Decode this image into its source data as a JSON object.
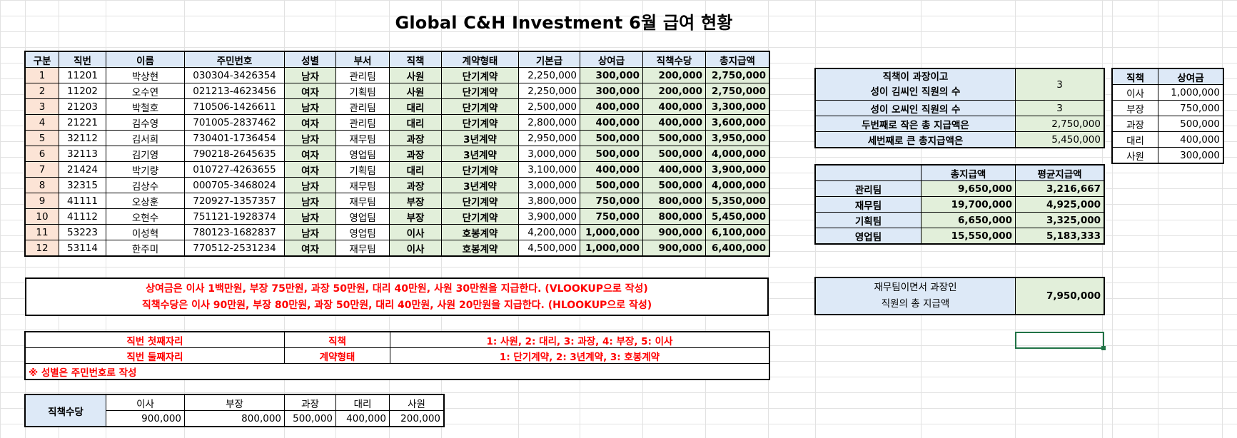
{
  "title": "Global C&H Investment 6월 급여 현황",
  "main_table": {
    "headers": [
      "구분",
      "직번",
      "이름",
      "주민번호",
      "성별",
      "부서",
      "직책",
      "계약형태",
      "기본급",
      "상여급",
      "직책수당",
      "총지급액"
    ],
    "rows": [
      [
        "1",
        "11201",
        "박상현",
        "030304-3426354",
        "남자",
        "관리팀",
        "사원",
        "단기계약",
        "2,250,000",
        "300,000",
        "200,000",
        "2,750,000"
      ],
      [
        "2",
        "11202",
        "오수연",
        "021213-4623456",
        "여자",
        "기획팀",
        "사원",
        "단기계약",
        "2,250,000",
        "300,000",
        "200,000",
        "2,750,000"
      ],
      [
        "3",
        "21203",
        "박철호",
        "710506-1426611",
        "남자",
        "관리팀",
        "대리",
        "단기계약",
        "2,500,000",
        "400,000",
        "400,000",
        "3,300,000"
      ],
      [
        "4",
        "21221",
        "김수영",
        "701005-2837462",
        "여자",
        "관리팀",
        "대리",
        "단기계약",
        "2,800,000",
        "400,000",
        "400,000",
        "3,600,000"
      ],
      [
        "5",
        "32112",
        "김서희",
        "730401-1736454",
        "남자",
        "재무팀",
        "과장",
        "3년계약",
        "2,950,000",
        "500,000",
        "500,000",
        "3,950,000"
      ],
      [
        "6",
        "32113",
        "김기영",
        "790218-2645635",
        "여자",
        "영업팀",
        "과장",
        "3년계약",
        "3,000,000",
        "500,000",
        "500,000",
        "4,000,000"
      ],
      [
        "7",
        "21424",
        "박기량",
        "010727-4263655",
        "여자",
        "기획팀",
        "대리",
        "단기계약",
        "3,100,000",
        "400,000",
        "400,000",
        "3,900,000"
      ],
      [
        "8",
        "32315",
        "김상수",
        "000705-3468024",
        "남자",
        "재무팀",
        "과장",
        "3년계약",
        "3,000,000",
        "500,000",
        "500,000",
        "4,000,000"
      ],
      [
        "9",
        "41111",
        "오상훈",
        "720927-1357357",
        "남자",
        "재무팀",
        "부장",
        "단기계약",
        "3,800,000",
        "750,000",
        "800,000",
        "5,350,000"
      ],
      [
        "10",
        "41112",
        "오현수",
        "751121-1928374",
        "남자",
        "영업팀",
        "부장",
        "단기계약",
        "3,900,000",
        "750,000",
        "800,000",
        "5,450,000"
      ],
      [
        "11",
        "53223",
        "이성혁",
        "780123-1682837",
        "남자",
        "영업팀",
        "이사",
        "호봉계약",
        "4,200,000",
        "1,000,000",
        "900,000",
        "6,100,000"
      ],
      [
        "12",
        "53114",
        "한주미",
        "770512-2531234",
        "여자",
        "재무팀",
        "이사",
        "호봉계약",
        "4,500,000",
        "1,000,000",
        "900,000",
        "6,400,000"
      ]
    ]
  },
  "stats": [
    {
      "label_line1": "직책이 과장이고",
      "label_line2": "성이 김씨인 직원의 수",
      "value": "3"
    },
    {
      "label": "성이 오씨인 직원의 수",
      "value": "3"
    },
    {
      "label": "두번째로 작은 총 지급액은",
      "value": "2,750,000"
    },
    {
      "label": "세번째로 큰 총지급액은",
      "value": "5,450,000"
    }
  ],
  "dept_table": {
    "headers": [
      "",
      "총지급액",
      "평균지급액"
    ],
    "rows": [
      [
        "관리팀",
        "9,650,000",
        "3,216,667"
      ],
      [
        "재무팀",
        "19,700,000",
        "4,925,000"
      ],
      [
        "기획팀",
        "6,650,000",
        "3,325,000"
      ],
      [
        "영업팀",
        "15,550,000",
        "5,183,333"
      ]
    ]
  },
  "finance_box": {
    "line1": "재무팀이면서 과장인",
    "line2": "직원의 총 지급액",
    "value": "7,950,000"
  },
  "bonus_lookup": {
    "headers": [
      "직책",
      "상여금"
    ],
    "rows": [
      [
        "이사",
        "1,000,000"
      ],
      [
        "부장",
        "750,000"
      ],
      [
        "과장",
        "500,000"
      ],
      [
        "대리",
        "400,000"
      ],
      [
        "사원",
        "300,000"
      ]
    ]
  },
  "notes": {
    "line1": "상여금은 이사 1백만원, 부장 75만원, 과장 50만원, 대리 40만원, 사원 30만원을 지급한다. (VLOOKUP으로 작성)",
    "line2": "직책수당은 이사 90만원, 부장 80만원, 과장 50만원, 대리 40만원, 사원 20만원을 지급한다. (HLOOKUP으로 작성)"
  },
  "code_table": {
    "row1": {
      "label": "직번 첫째자리",
      "field": "직책",
      "desc": "1: 사원, 2: 대리, 3: 과장, 4: 부장, 5: 이사"
    },
    "row2": {
      "label": "직번 둘째자리",
      "field": "계약형태",
      "desc": "1: 단기계약, 2: 3년계약, 3: 호봉계약"
    },
    "note": "※ 성별은 주민번호로 작성"
  },
  "allowance_table": {
    "label": "직책수당",
    "headers": [
      "이사",
      "부장",
      "과장",
      "대리",
      "사원"
    ],
    "values": [
      "900,000",
      "800,000",
      "500,000",
      "400,000",
      "200,000"
    ]
  },
  "colors": {
    "header_blue": "#dde9f7",
    "pink": "#fce4d6",
    "green": "#e2efda",
    "red": "#ff0000",
    "selection": "#217346"
  }
}
